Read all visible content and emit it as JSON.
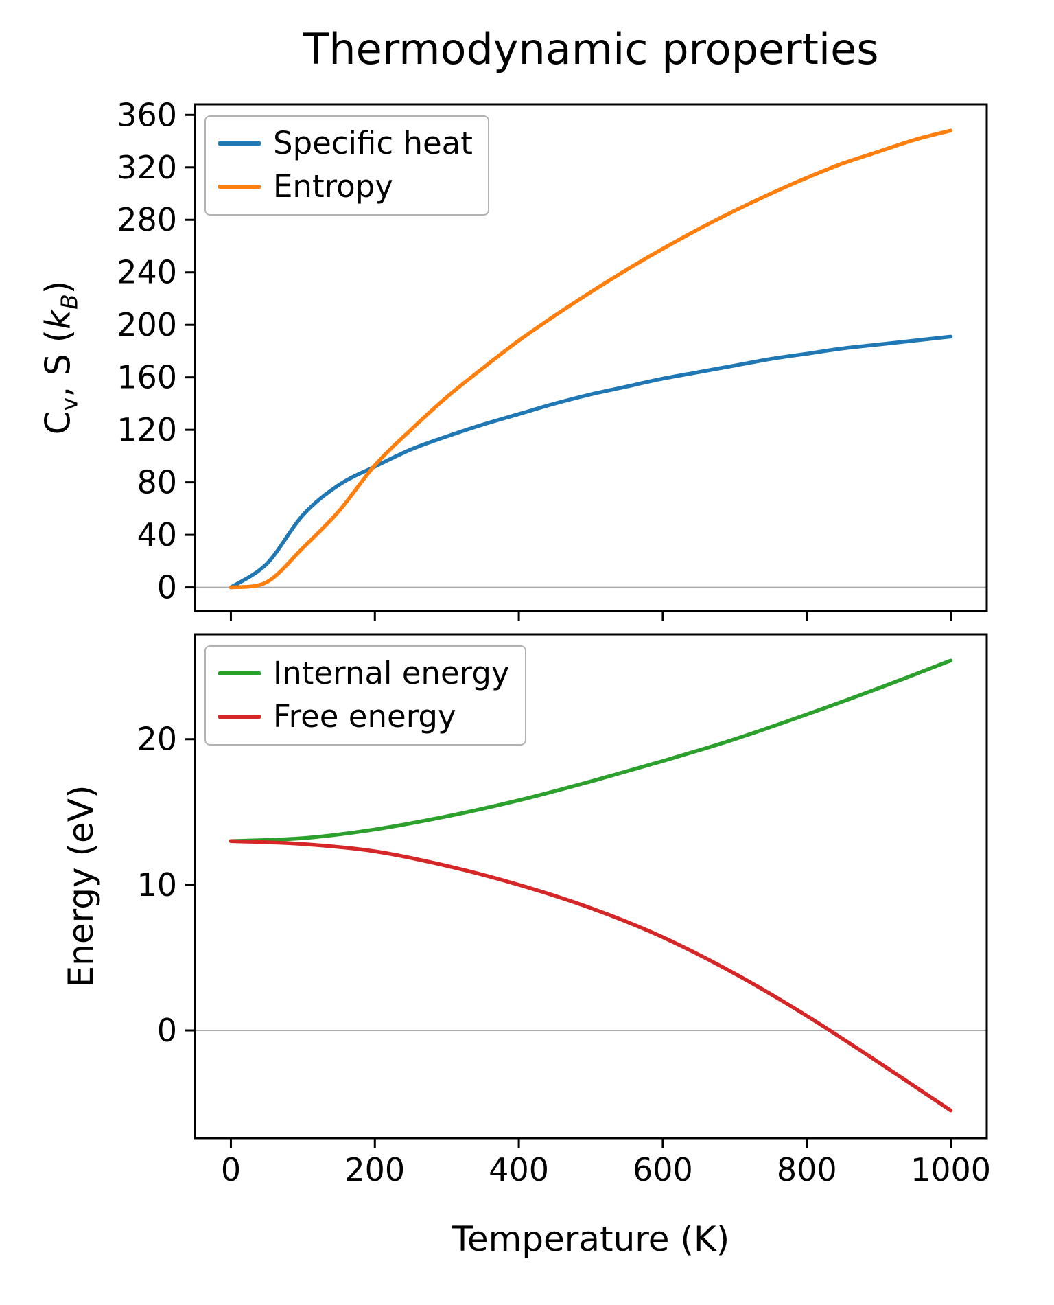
{
  "title": "Thermodynamic properties",
  "ylabel_top_parts": {
    "c": "C",
    "v": "v",
    "mid": ", S (",
    "k": "k",
    "b": "B",
    "close": ")"
  },
  "chart_data": [
    {
      "type": "line",
      "title": "Thermodynamic properties",
      "ylabel": "Cv, S (kB)",
      "xlabel": "Temperature (K)",
      "xlim": [
        -50,
        1050
      ],
      "ylim": [
        -18,
        368
      ],
      "xticks": [
        0,
        200,
        400,
        600,
        800,
        1000
      ],
      "yticks": [
        0,
        40,
        80,
        120,
        160,
        200,
        240,
        280,
        320,
        360
      ],
      "show_x_tick_labels": false,
      "grid": false,
      "axhline": 0,
      "legend_position": "upper left",
      "x": [
        0,
        50,
        100,
        150,
        200,
        250,
        300,
        350,
        400,
        450,
        500,
        550,
        600,
        650,
        700,
        750,
        800,
        850,
        900,
        950,
        1000
      ],
      "series": [
        {
          "name": "Specific heat",
          "color": "#1f77b4",
          "values": [
            0,
            18,
            55,
            78,
            92,
            105,
            115,
            124,
            132,
            140,
            147,
            153,
            159,
            164,
            169,
            174,
            178,
            182,
            185,
            188,
            191
          ]
        },
        {
          "name": "Entropy",
          "color": "#ff7f0e",
          "values": [
            0,
            4,
            30,
            58,
            93,
            120,
            145,
            167,
            188,
            207,
            225,
            242,
            258,
            273,
            287,
            300,
            312,
            323,
            332,
            341,
            348
          ]
        }
      ]
    },
    {
      "type": "line",
      "ylabel": "Energy (eV)",
      "xlabel": "Temperature (K)",
      "xlim": [
        -50,
        1050
      ],
      "ylim": [
        -7.4,
        27.2
      ],
      "xticks": [
        0,
        200,
        400,
        600,
        800,
        1000
      ],
      "yticks": [
        0,
        10,
        20
      ],
      "show_x_tick_labels": true,
      "grid": false,
      "axhline": 0,
      "legend_position": "upper left",
      "x": [
        0,
        100,
        200,
        300,
        400,
        500,
        600,
        700,
        800,
        900,
        1000
      ],
      "series": [
        {
          "name": "Internal energy",
          "color": "#2ca02c",
          "values": [
            13.0,
            13.2,
            13.8,
            14.7,
            15.8,
            17.1,
            18.5,
            20.0,
            21.7,
            23.5,
            25.4
          ]
        },
        {
          "name": "Free energy",
          "color": "#d62728",
          "values": [
            13.0,
            12.8,
            12.3,
            11.3,
            10.0,
            8.4,
            6.4,
            3.9,
            1.0,
            -2.2,
            -5.5
          ]
        }
      ]
    }
  ],
  "axis_color": "#000000",
  "axhline_color": "#aaaaaa"
}
